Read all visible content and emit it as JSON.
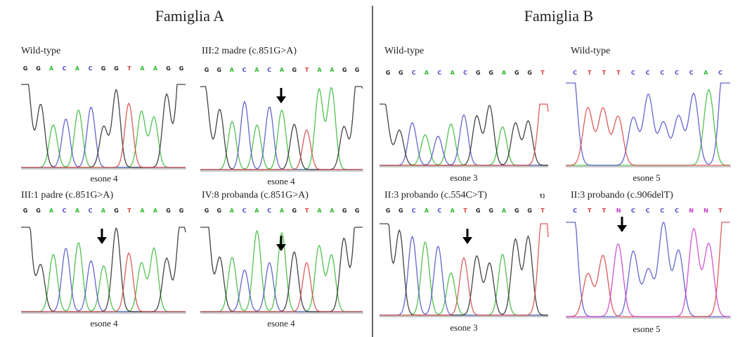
{
  "titles": [
    "Famiglia A",
    "Famiglia B"
  ],
  "panels": [
    {
      "label": "Wild-type",
      "bases": [
        "G",
        "G",
        "A",
        "C",
        "A",
        "C",
        "G",
        "G",
        "T",
        "A",
        "A",
        "G",
        "G"
      ],
      "exon": "esone 4"
    },
    {
      "label": "III:2 madre (c.851G>A)",
      "bases": [
        "G",
        "G",
        "A",
        "C",
        "A",
        "C",
        "A",
        "G",
        "T",
        "A",
        "A",
        "G",
        "G"
      ],
      "exon": "esone 4"
    },
    {
      "label": "III:1 padre (c.851G>A)",
      "bases": [
        "G",
        "G",
        "A",
        "C",
        "A",
        "C",
        "A",
        "G",
        "T",
        "A",
        "A",
        "G",
        "G"
      ],
      "exon": "esone 4"
    },
    {
      "label": "IV:8 probanda (c.851G>A)",
      "bases": [
        "G",
        "G",
        "A",
        "C",
        "A",
        "C",
        "A",
        "G",
        "T",
        "A",
        "A",
        "G",
        "G"
      ],
      "exon": "esone 4"
    },
    {
      "label": "Wild-type",
      "bases": [
        "G",
        "G",
        "C",
        "A",
        "C",
        "A",
        "C",
        "G",
        "G",
        "A",
        "G",
        "G",
        "T"
      ],
      "exon": "esone 3"
    },
    {
      "label": "Wild-type",
      "bases": [
        "C",
        "T",
        "T",
        "T",
        "C",
        "C",
        "C",
        "C",
        "C",
        "A",
        "C"
      ],
      "exon": "esone 5"
    },
    {
      "label": "II:3 probando (c.554C>T)",
      "bases": [
        "G",
        "G",
        "C",
        "A",
        "C",
        "A",
        "T",
        "G",
        "G",
        "A",
        "G",
        "G",
        "T"
      ],
      "exon": "esone 3",
      "note": "t)"
    },
    {
      "label": "II:3 probando (c.906delT)",
      "bases": [
        "C",
        "T",
        "T",
        "N",
        "C",
        "C",
        "C",
        "C",
        "N",
        "N",
        "T"
      ],
      "exon": "esone 5"
    }
  ]
}
